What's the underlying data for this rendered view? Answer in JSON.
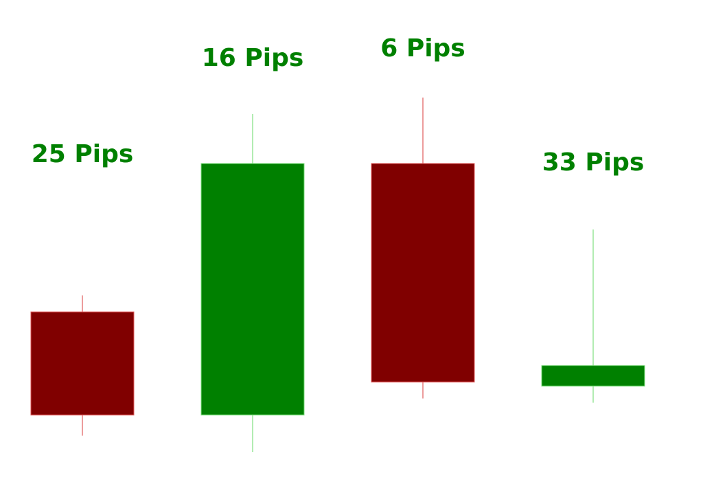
{
  "colors": {
    "bullish": "#008000",
    "bearish": "#800000",
    "bullish_wick": "#7FE07F",
    "bearish_wick": "#E05A5A",
    "label": "#008000",
    "background": "#ffffff"
  },
  "chart_data": {
    "type": "candlestick",
    "title": "",
    "xlabel": "",
    "ylabel": "",
    "grid": false,
    "candles": [
      {
        "direction": "bearish",
        "open": 25,
        "high": 29,
        "low": -5,
        "close": 0,
        "label": "25 Pips"
      },
      {
        "direction": "bullish",
        "open": 0,
        "high": 73,
        "low": -9,
        "close": 61,
        "label": "16 Pips"
      },
      {
        "direction": "bearish",
        "open": 61,
        "high": 77,
        "low": 4,
        "close": 8,
        "label": "6 Pips"
      },
      {
        "direction": "bullish",
        "open": 7,
        "high": 45,
        "low": 3,
        "close": 12,
        "label": "33 Pips"
      }
    ]
  }
}
